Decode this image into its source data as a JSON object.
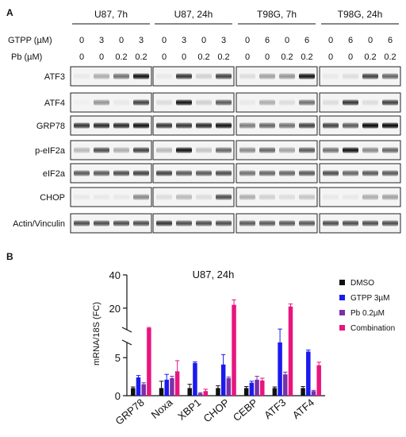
{
  "panel_a": {
    "label": "A",
    "groups": [
      {
        "title": "U87, 7h",
        "gtpp": [
          "0",
          "3",
          "0",
          "3"
        ],
        "pb": [
          "0",
          "0",
          "0.2",
          "0.2"
        ]
      },
      {
        "title": "U87, 24h",
        "gtpp": [
          "0",
          "3",
          "0",
          "3"
        ],
        "pb": [
          "0",
          "0",
          "0.2",
          "0.2"
        ]
      },
      {
        "title": "T98G, 7h",
        "gtpp": [
          "0",
          "6",
          "0",
          "6"
        ],
        "pb": [
          "0",
          "0",
          "0.2",
          "0.2"
        ]
      },
      {
        "title": "T98G, 24h",
        "gtpp": [
          "0",
          "6",
          "0",
          "6"
        ],
        "pb": [
          "0",
          "0",
          "0.2",
          "0.2"
        ]
      }
    ],
    "gtpp_label": "GTPP (µM)",
    "pb_label": "Pb (µM)",
    "blots": [
      {
        "name": "ATF3",
        "intensity": [
          [
            0.05,
            0.3,
            0.55,
            0.95
          ],
          [
            0.05,
            0.8,
            0.15,
            0.75
          ],
          [
            0.1,
            0.35,
            0.4,
            0.95
          ],
          [
            0.05,
            0.1,
            0.75,
            0.6
          ]
        ]
      },
      {
        "name": "ATF4",
        "intensity": [
          [
            0.02,
            0.4,
            0.05,
            0.75
          ],
          [
            0.1,
            0.95,
            0.15,
            0.65
          ],
          [
            0.05,
            0.3,
            0.1,
            0.55
          ],
          [
            0.1,
            0.8,
            0.1,
            0.75
          ]
        ]
      },
      {
        "name": "GRP78",
        "intensity": [
          [
            0.8,
            0.85,
            0.85,
            0.95
          ],
          [
            0.8,
            0.8,
            0.85,
            0.95
          ],
          [
            0.5,
            0.6,
            0.55,
            0.75
          ],
          [
            0.75,
            0.65,
            1.0,
            1.0
          ]
        ]
      },
      {
        "name": "p-eIF2a",
        "intensity": [
          [
            0.25,
            0.7,
            0.3,
            0.75
          ],
          [
            0.25,
            0.95,
            0.2,
            0.6
          ],
          [
            0.45,
            0.6,
            0.35,
            0.65
          ],
          [
            0.55,
            0.95,
            0.45,
            0.6
          ]
        ]
      },
      {
        "name": "eIF2a",
        "intensity": [
          [
            0.65,
            0.65,
            0.7,
            0.75
          ],
          [
            0.75,
            0.65,
            0.65,
            0.7
          ],
          [
            0.55,
            0.6,
            0.6,
            0.65
          ],
          [
            0.7,
            0.6,
            0.65,
            0.65
          ]
        ]
      },
      {
        "name": "CHOP",
        "intensity": [
          [
            0.05,
            0.05,
            0.05,
            0.45
          ],
          [
            0.1,
            0.25,
            0.1,
            0.7
          ],
          [
            0.3,
            0.15,
            0.1,
            0.2
          ],
          [
            0.05,
            0.05,
            0.3,
            0.35
          ]
        ]
      },
      {
        "name": "Actin/Vinculin",
        "intensity": [
          [
            0.7,
            0.7,
            0.7,
            0.7
          ],
          [
            0.8,
            0.7,
            0.7,
            0.7
          ],
          [
            0.65,
            0.65,
            0.65,
            0.65
          ],
          [
            0.7,
            0.7,
            0.7,
            0.7
          ]
        ]
      }
    ]
  },
  "panel_b": {
    "label": "B",
    "chart_data": {
      "type": "bar",
      "title": "U87, 24h",
      "ylabel": "mRNA/18S (FC)",
      "categories": [
        "GRP78",
        "Noxa",
        "XBP1",
        "CHOP",
        "CEBP",
        "ATF3",
        "ATF4"
      ],
      "y_axis_broken": true,
      "lower_ticks": [
        "0",
        "5"
      ],
      "upper_ticks": [
        "20",
        "40"
      ],
      "series": [
        {
          "name": "DMSO",
          "color": "#111111",
          "values": [
            1.0,
            1.0,
            1.0,
            1.0,
            1.0,
            1.0,
            1.0
          ],
          "errors": [
            0.15,
            0.9,
            0.5,
            0.3,
            0.2,
            0.15,
            0.2
          ]
        },
        {
          "name": "GTPP 3µM",
          "color": "#1a1aee",
          "values": [
            2.4,
            2.1,
            4.3,
            4.1,
            1.7,
            7.0,
            5.8
          ],
          "errors": [
            0.25,
            0.7,
            0.15,
            1.3,
            0.2,
            0.4,
            0.2
          ]
        },
        {
          "name": "Pb 0.2µM",
          "color": "#7b2fa8",
          "values": [
            1.5,
            2.3,
            0.3,
            2.3,
            2.1,
            2.8,
            0.6
          ],
          "errors": [
            0.2,
            0.25,
            0.1,
            0.15,
            0.45,
            0.3,
            0.1
          ]
        },
        {
          "name": "Combination",
          "color": "#e8157f",
          "values": [
            8.0,
            3.2,
            0.6,
            22.0,
            2.0,
            21.0,
            4.0
          ],
          "errors": [
            0.4,
            1.4,
            0.25,
            3.0,
            0.3,
            1.5,
            0.4
          ]
        }
      ]
    }
  }
}
